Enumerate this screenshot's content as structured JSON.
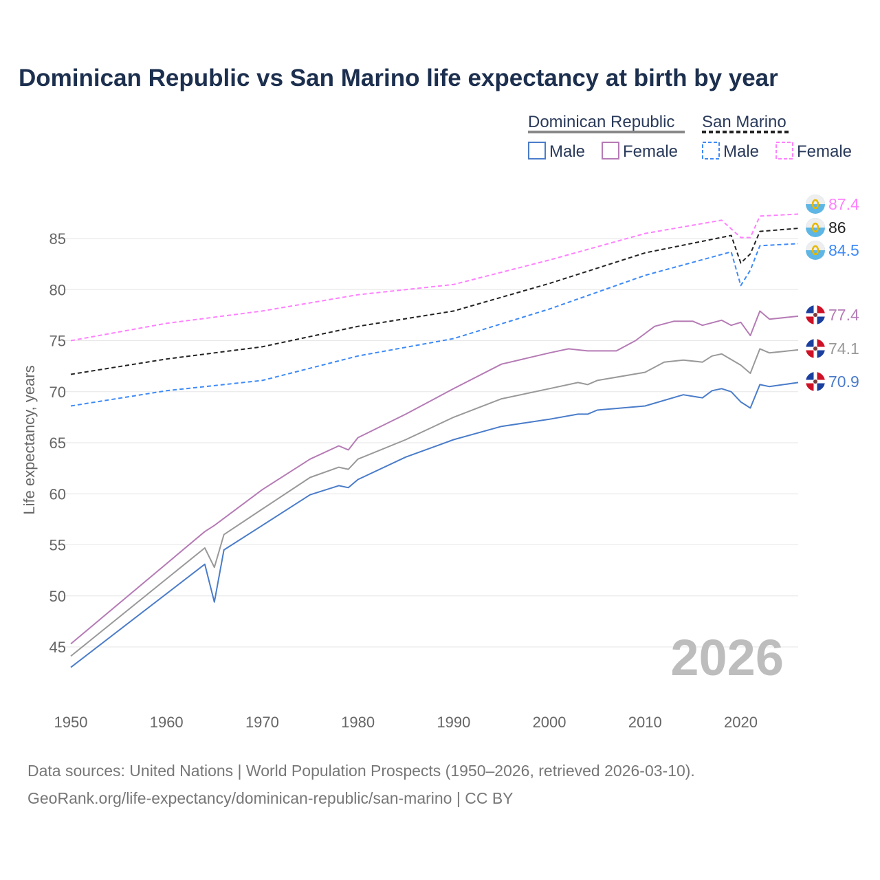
{
  "chart_data": {
    "type": "line",
    "title": "Dominican Republic vs San Marino life expectancy at birth by year",
    "xlabel": "",
    "ylabel": "Life expectancy, years",
    "xlim": [
      1950,
      2026
    ],
    "ylim": [
      41,
      89
    ],
    "x_ticks": [
      1950,
      1960,
      1970,
      1980,
      1990,
      2000,
      2010,
      2020
    ],
    "y_ticks": [
      45,
      50,
      55,
      60,
      65,
      70,
      75,
      80,
      85
    ],
    "grid": true,
    "year_watermark": "2026",
    "legend": {
      "placement": "top-right",
      "groups": [
        {
          "name": "Dominican Republic",
          "color": "#888888",
          "items": [
            "Male",
            "Female"
          ]
        },
        {
          "name": "San Marino",
          "color": "#222222",
          "items": [
            "Male",
            "Female"
          ]
        }
      ]
    },
    "series": [
      {
        "name": "Dominican Republic",
        "sex": "Total",
        "color": "#999999",
        "dashed": false,
        "end_label": "74.1",
        "x": [
          1950,
          1964,
          1965,
          1966,
          1970,
          1975,
          1978,
          1979,
          1980,
          1985,
          1990,
          1995,
          2000,
          2003,
          2004,
          2005,
          2010,
          2012,
          2014,
          2016,
          2017,
          2018,
          2020,
          2021,
          2022,
          2023,
          2026
        ],
        "y": [
          44.1,
          54.7,
          52.8,
          56.0,
          58.5,
          61.6,
          62.6,
          62.4,
          63.4,
          65.3,
          67.5,
          69.3,
          70.3,
          70.9,
          70.7,
          71.1,
          71.9,
          72.9,
          73.1,
          72.9,
          73.5,
          73.7,
          72.6,
          71.8,
          74.2,
          73.8,
          74.1
        ]
      },
      {
        "name": "Dominican Republic",
        "sex": "Male",
        "color": "#4a7cc9",
        "dashed": false,
        "end_label": "70.9",
        "x": [
          1950,
          1964,
          1965,
          1966,
          1970,
          1975,
          1978,
          1979,
          1980,
          1985,
          1990,
          1995,
          2000,
          2003,
          2004,
          2005,
          2010,
          2014,
          2016,
          2017,
          2018,
          2019,
          2020,
          2021,
          2022,
          2023,
          2026
        ],
        "y": [
          43.0,
          53.1,
          49.4,
          54.5,
          56.9,
          59.9,
          60.8,
          60.6,
          61.4,
          63.6,
          65.3,
          66.6,
          67.3,
          67.8,
          67.8,
          68.2,
          68.6,
          69.7,
          69.4,
          70.1,
          70.3,
          70.0,
          69.0,
          68.4,
          70.7,
          70.5,
          70.9
        ]
      },
      {
        "name": "Dominican Republic",
        "sex": "Female",
        "color": "#b57bb5",
        "dashed": false,
        "end_label": "77.4",
        "x": [
          1950,
          1964,
          1965,
          1970,
          1975,
          1978,
          1979,
          1980,
          1985,
          1990,
          1995,
          2000,
          2002,
          2004,
          2007,
          2009,
          2011,
          2013,
          2015,
          2016,
          2018,
          2019,
          2020,
          2021,
          2022,
          2023,
          2026
        ],
        "y": [
          45.3,
          56.3,
          56.9,
          60.4,
          63.4,
          64.7,
          64.3,
          65.5,
          67.8,
          70.3,
          72.7,
          73.8,
          74.2,
          74.0,
          74.0,
          75.0,
          76.4,
          76.9,
          76.9,
          76.5,
          77.0,
          76.5,
          76.8,
          75.5,
          77.9,
          77.1,
          77.4
        ]
      },
      {
        "name": "San Marino",
        "sex": "Total",
        "color": "#222222",
        "dashed": true,
        "end_label": "86",
        "x": [
          1950,
          1960,
          1970,
          1980,
          1990,
          2000,
          2010,
          2019,
          2020,
          2021,
          2022,
          2026
        ],
        "y": [
          71.7,
          73.2,
          74.4,
          76.4,
          77.9,
          80.6,
          83.6,
          85.3,
          82.6,
          83.5,
          85.7,
          86.0
        ]
      },
      {
        "name": "San Marino",
        "sex": "Male",
        "color": "#3d8af7",
        "dashed": true,
        "end_label": "84.5",
        "x": [
          1950,
          1960,
          1970,
          1980,
          1990,
          2000,
          2010,
          2019,
          2020,
          2021,
          2022,
          2026
        ],
        "y": [
          68.6,
          70.1,
          71.1,
          73.5,
          75.2,
          78.1,
          81.4,
          83.7,
          80.4,
          81.9,
          84.3,
          84.5
        ]
      },
      {
        "name": "San Marino",
        "sex": "Female",
        "color": "#ff80ff",
        "dashed": true,
        "end_label": "87.4",
        "x": [
          1950,
          1960,
          1970,
          1980,
          1990,
          2000,
          2010,
          2018,
          2020,
          2021,
          2022,
          2026
        ],
        "y": [
          75.0,
          76.7,
          77.9,
          79.5,
          80.5,
          82.9,
          85.5,
          86.8,
          85.1,
          85.1,
          87.2,
          87.4
        ]
      }
    ]
  },
  "source_line1": "Data sources: United Nations | World Population Prospects (1950–2026, retrieved 2026-03-10).",
  "source_line2": "GeoRank.org/life-expectancy/dominican-republic/san-marino | CC BY"
}
